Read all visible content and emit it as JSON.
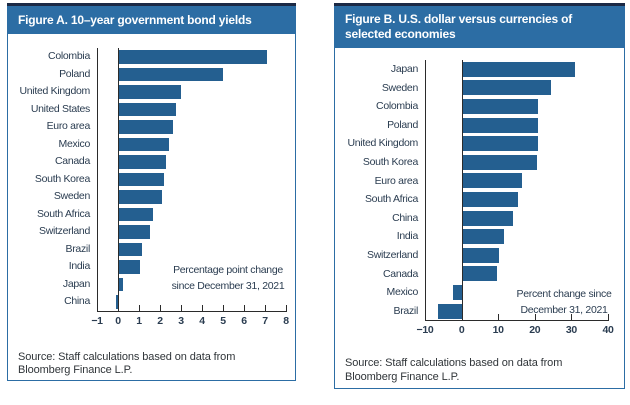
{
  "window": {
    "background": "#ffffff"
  },
  "colors": {
    "bar": "#245F90",
    "title_band": "#2C6DA4",
    "panel_border": "#2C6DA4",
    "top_rule": "#1B2945",
    "axis_line": "#2B2B2B",
    "label_text": "#2A3C50",
    "annotation_text": "#2A3C50",
    "source_text": "#303539",
    "title_text": "#FFFFFF"
  },
  "chart_data": [
    {
      "id": "figure-a",
      "type": "bar",
      "orientation": "horizontal",
      "title": "Figure A. 10–year government bond yields",
      "title_lines": [
        "Figure A. 10–year government bond yields"
      ],
      "categories": [
        "Colombia",
        "Poland",
        "United Kingdom",
        "United States",
        "Euro area",
        "Mexico",
        "Canada",
        "South Korea",
        "Sweden",
        "South Africa",
        "Switzerland",
        "Brazil",
        "India",
        "Japan",
        "China"
      ],
      "values": [
        7.1,
        5.0,
        3.0,
        2.75,
        2.6,
        2.45,
        2.3,
        2.2,
        2.1,
        1.65,
        1.5,
        1.15,
        1.05,
        0.25,
        -0.1
      ],
      "xlim": [
        -1,
        8
      ],
      "xticks": [
        -1,
        0,
        1,
        2,
        3,
        4,
        5,
        6,
        7,
        8
      ],
      "xtick_labels": [
        "−1",
        "0",
        "1",
        "2",
        "3",
        "4",
        "5",
        "6",
        "7",
        "8"
      ],
      "grid": "off",
      "annotation_line1": "Percentage point change",
      "annotation_line2": "since December 31, 2021",
      "source_line1": "Source: Staff calculations based on data from",
      "source_line2": "Bloomberg Finance L.P."
    },
    {
      "id": "figure-b",
      "type": "bar",
      "orientation": "horizontal",
      "title": "Figure B. U.S. dollar versus currencies of selected economies",
      "title_lines": [
        "Figure B. U.S. dollar versus currencies of",
        "selected economies"
      ],
      "categories": [
        "Japan",
        "Sweden",
        "Colombia",
        "Poland",
        "United Kingdom",
        "South Korea",
        "Euro area",
        "South Africa",
        "China",
        "India",
        "Switzerland",
        "Canada",
        "Mexico",
        "Brazil"
      ],
      "values": [
        31.0,
        24.5,
        21.0,
        21.0,
        21.0,
        20.6,
        16.5,
        15.3,
        14.0,
        11.5,
        10.3,
        9.6,
        -2.3,
        -6.5
      ],
      "xlim": [
        -10,
        40
      ],
      "xticks": [
        -10,
        0,
        10,
        20,
        30,
        40
      ],
      "xtick_labels": [
        "−10",
        "0",
        "10",
        "20",
        "30",
        "40"
      ],
      "grid": "off",
      "annotation_line1": "Percent change since",
      "annotation_line2": "December 31, 2021",
      "source_line1": "Source: Staff calculations based on data from",
      "source_line2": "Bloomberg Finance L.P."
    }
  ]
}
